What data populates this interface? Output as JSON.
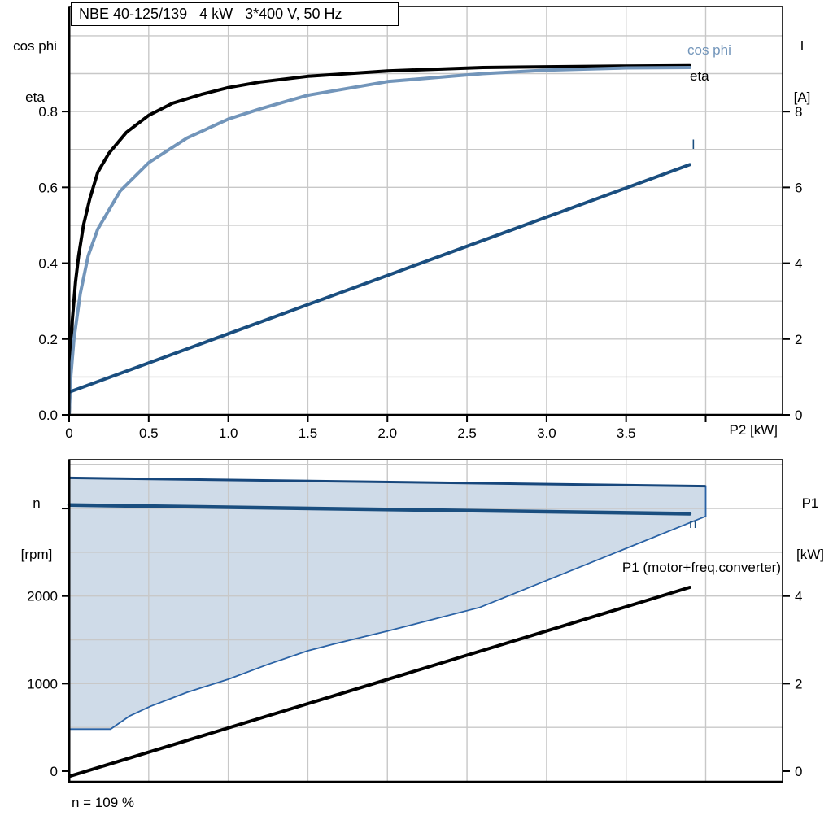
{
  "title": "NBE 40-125/139   4 kW   3*400 V, 50 Hz",
  "colors": {
    "eta_curve": "#000000",
    "cosphi_curve": "#7295ba",
    "current_curve": "#1a4e7f",
    "speed_curve": "#1a4e7f",
    "p1_curve": "#000000",
    "envelope_fill": "#cfdbe8",
    "envelope_stroke": "#2a62a5",
    "envelope_upper_stroke": "#17477c",
    "grid": "#c8c8c8",
    "frame": "#000000"
  },
  "labels": {
    "top_left_axis_line1": "cos phi",
    "top_left_axis_line2": "eta",
    "top_right_axis_line1": "I",
    "top_right_axis_line2": "[A]",
    "top_x_axis": "P2 [kW]",
    "curve_cosphi": "cos phi",
    "curve_eta": "eta",
    "curve_current": "I",
    "bottom_left_axis_line1": "n",
    "bottom_left_axis_line2": "[rpm]",
    "bottom_right_axis_line1": "P1",
    "bottom_right_axis_line2": "[kW]",
    "curve_speed": "n",
    "curve_p1": "P1 (motor+freq.converter)",
    "speed_note": "n = 109 %"
  },
  "chart_data": [
    {
      "type": "line",
      "title": "NBE 40-125/139   4 kW   3*400 V, 50 Hz",
      "xlabel": "P2 [kW]",
      "ylabel_left": "cos phi / eta",
      "ylabel_right": "I [A]",
      "x_range": [
        0,
        4.483
      ],
      "y_left_range": [
        0,
        1.077
      ],
      "y_right_range": [
        0,
        10.772
      ],
      "x_grid_step": 0.5,
      "y_grid_step": 0.1,
      "x_ticks": [
        [
          0,
          "0"
        ],
        [
          0.5,
          "0.5"
        ],
        [
          1.0,
          "1.0"
        ],
        [
          1.5,
          "1.5"
        ],
        [
          2.0,
          "2.0"
        ],
        [
          2.5,
          "2.5"
        ],
        [
          3.0,
          "3.0"
        ],
        [
          3.5,
          "3.5"
        ],
        [
          4.0,
          ""
        ]
      ],
      "y_left_ticks": [
        [
          0,
          "0.0"
        ],
        [
          0.2,
          "0.2"
        ],
        [
          0.4,
          "0.4"
        ],
        [
          0.6,
          "0.6"
        ],
        [
          0.8,
          "0.8"
        ]
      ],
      "y_right_ticks": [
        [
          0,
          "0"
        ],
        [
          2,
          "2"
        ],
        [
          4,
          "4"
        ],
        [
          6,
          "6"
        ],
        [
          8,
          "8"
        ]
      ],
      "series": [
        {
          "name": "eta",
          "axis": "left",
          "color": "#000000",
          "width": 4,
          "points": [
            [
              0,
              0
            ],
            [
              0.01,
              0.15
            ],
            [
              0.02,
              0.25
            ],
            [
              0.04,
              0.35
            ],
            [
              0.06,
              0.42
            ],
            [
              0.09,
              0.5
            ],
            [
              0.13,
              0.57
            ],
            [
              0.18,
              0.64
            ],
            [
              0.25,
              0.69
            ],
            [
              0.36,
              0.745
            ],
            [
              0.5,
              0.79
            ],
            [
              0.65,
              0.822
            ],
            [
              0.83,
              0.845
            ],
            [
              1.0,
              0.863
            ],
            [
              1.2,
              0.878
            ],
            [
              1.5,
              0.893
            ],
            [
              2.0,
              0.907
            ],
            [
              2.6,
              0.916
            ],
            [
              3.0,
              0.918
            ],
            [
              3.5,
              0.92
            ],
            [
              3.9,
              0.921
            ]
          ]
        },
        {
          "name": "cos phi",
          "axis": "left",
          "color": "#7295ba",
          "width": 4,
          "points": [
            [
              0,
              0
            ],
            [
              0.01,
              0.1
            ],
            [
              0.03,
              0.2
            ],
            [
              0.07,
              0.32
            ],
            [
              0.12,
              0.42
            ],
            [
              0.18,
              0.49
            ],
            [
              0.32,
              0.59
            ],
            [
              0.5,
              0.665
            ],
            [
              0.74,
              0.73
            ],
            [
              1.0,
              0.78
            ],
            [
              1.2,
              0.807
            ],
            [
              1.5,
              0.843
            ],
            [
              2.0,
              0.879
            ],
            [
              2.6,
              0.9
            ],
            [
              3.0,
              0.909
            ],
            [
              3.5,
              0.915
            ],
            [
              3.9,
              0.916
            ]
          ]
        },
        {
          "name": "I",
          "axis": "right",
          "color": "#1a4e7f",
          "width": 4,
          "points": [
            [
              0,
              0.6
            ],
            [
              3.9,
              6.6
            ]
          ]
        }
      ]
    },
    {
      "type": "line",
      "xlabel": "P2 [kW]",
      "ylabel_left": "n [rpm]",
      "ylabel_right": "P1 [kW]",
      "x_range": [
        0,
        4.483
      ],
      "y_left_range": [
        -121,
        3558
      ],
      "y_right_range": [
        -0.242,
        7.117
      ],
      "x_grid_step": 0.5,
      "y_grid_step": 500,
      "x_ticks": [],
      "y_left_ticks": [
        [
          0,
          "0"
        ],
        [
          1000,
          "1000"
        ],
        [
          2000,
          "2000"
        ],
        [
          3000,
          ""
        ]
      ],
      "y_right_ticks": [
        [
          0,
          "0"
        ],
        [
          2,
          "2"
        ],
        [
          4,
          "4"
        ]
      ],
      "envelope": {
        "comment": "allowed speed operating range",
        "upper": [
          [
            0,
            3350
          ],
          [
            4.0,
            3255
          ]
        ],
        "lower": [
          [
            0,
            480
          ],
          [
            0.26,
            480
          ],
          [
            0.38,
            630
          ],
          [
            0.51,
            740
          ],
          [
            0.74,
            900
          ],
          [
            1.0,
            1050
          ],
          [
            1.25,
            1220
          ],
          [
            1.5,
            1375
          ],
          [
            1.66,
            1450
          ],
          [
            2.0,
            1600
          ],
          [
            2.58,
            1870
          ],
          [
            4.0,
            2910
          ]
        ]
      },
      "series": [
        {
          "name": "n",
          "axis": "left",
          "color": "#1a4e7f",
          "width": 4.5,
          "points": [
            [
              0,
              3040
            ],
            [
              3.9,
              2940
            ]
          ]
        },
        {
          "name": "P1 (motor+freq.converter)",
          "axis": "right",
          "color": "#000000",
          "width": 4,
          "points": [
            [
              0,
              -0.12
            ],
            [
              3.9,
              4.2
            ]
          ]
        }
      ],
      "annotations": [
        "n = 109 %"
      ]
    }
  ]
}
